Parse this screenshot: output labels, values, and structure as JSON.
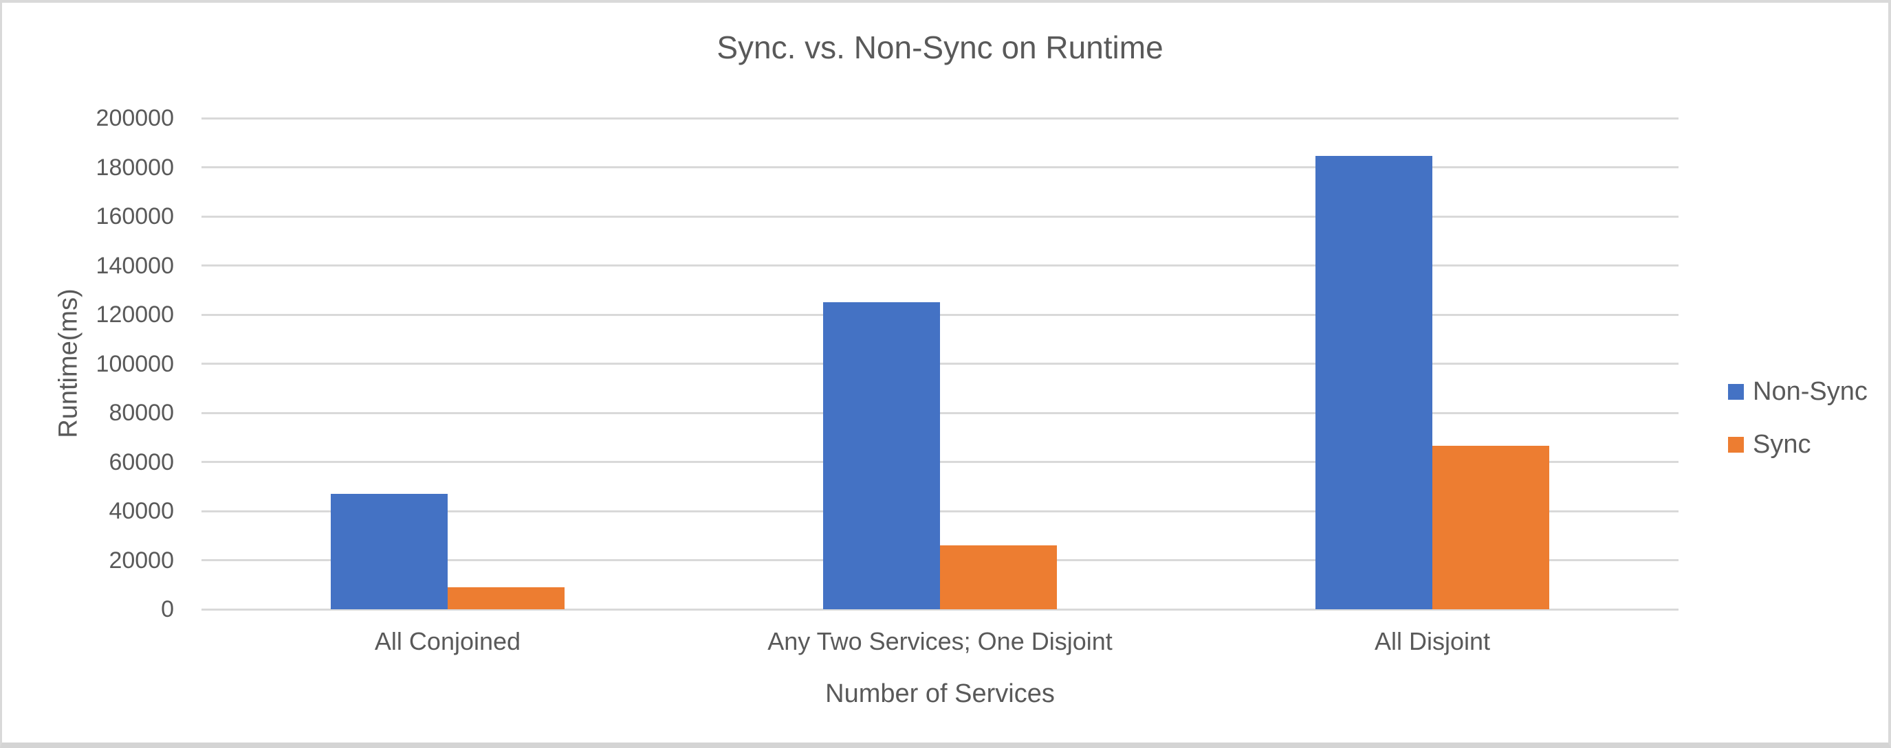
{
  "frame": {
    "background": "#ffffff",
    "border_color": "#d9d9d9"
  },
  "chart_data": {
    "type": "bar",
    "title": "Sync. vs. Non-Sync on Runtime",
    "xlabel": "Number of Services",
    "ylabel": "Runtime(ms)",
    "categories": [
      "All Conjoined",
      "Any Two Services; One Disjoint",
      "All Disjoint"
    ],
    "series": [
      {
        "name": "Non-Sync",
        "color": "#4472C4",
        "values": [
          47000,
          125000,
          184500
        ]
      },
      {
        "name": "Sync",
        "color": "#ED7D31",
        "values": [
          9000,
          26000,
          66500
        ]
      }
    ],
    "ylim": [
      0,
      200000
    ],
    "ytick_step": 20000,
    "ytick_labels": [
      "0",
      "20000",
      "40000",
      "60000",
      "80000",
      "100000",
      "120000",
      "140000",
      "160000",
      "180000",
      "200000"
    ],
    "grid": "horizontal-gridlines",
    "gridline_color": "#d9d9d9",
    "text_color": "#595959",
    "legend_position": "right",
    "legend_entries": [
      "Non-Sync",
      "Sync"
    ]
  }
}
